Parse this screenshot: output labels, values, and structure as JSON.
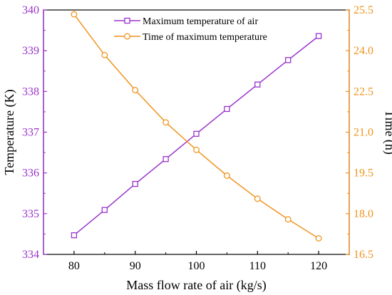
{
  "chart_data": {
    "type": "line",
    "x": [
      80,
      85,
      90,
      95,
      100,
      105,
      110,
      115,
      120
    ],
    "xlabel": "Mass flow rate of air (kg/s)",
    "xlim": [
      75,
      125
    ],
    "xticks": [
      "80",
      "90",
      "100",
      "110",
      "120"
    ],
    "y_left": {
      "label": "Temperature (K)",
      "lim": [
        334,
        340
      ],
      "ticks": [
        "334",
        "335",
        "336",
        "337",
        "338",
        "339",
        "340"
      ],
      "color": "#9933cc"
    },
    "y_right": {
      "label": "Time (h)",
      "lim": [
        16.5,
        25.5
      ],
      "ticks": [
        "16.5",
        "18.0",
        "19.5",
        "21.0",
        "22.5",
        "24.0",
        "25.5"
      ],
      "color": "#f0941e"
    },
    "series": [
      {
        "name": "Maximum temperature of air",
        "axis": "left",
        "marker": "square",
        "color": "#9933cc",
        "values": [
          334.47,
          335.09,
          335.73,
          336.34,
          336.96,
          337.57,
          338.17,
          338.77,
          339.36
        ]
      },
      {
        "name": "Time of maximum temperature",
        "axis": "right",
        "marker": "circle",
        "color": "#f0941e",
        "values": [
          25.34,
          23.84,
          22.55,
          21.36,
          20.35,
          19.4,
          18.55,
          17.79,
          17.09
        ]
      }
    ],
    "grid": false,
    "legend_position": "top-center"
  }
}
